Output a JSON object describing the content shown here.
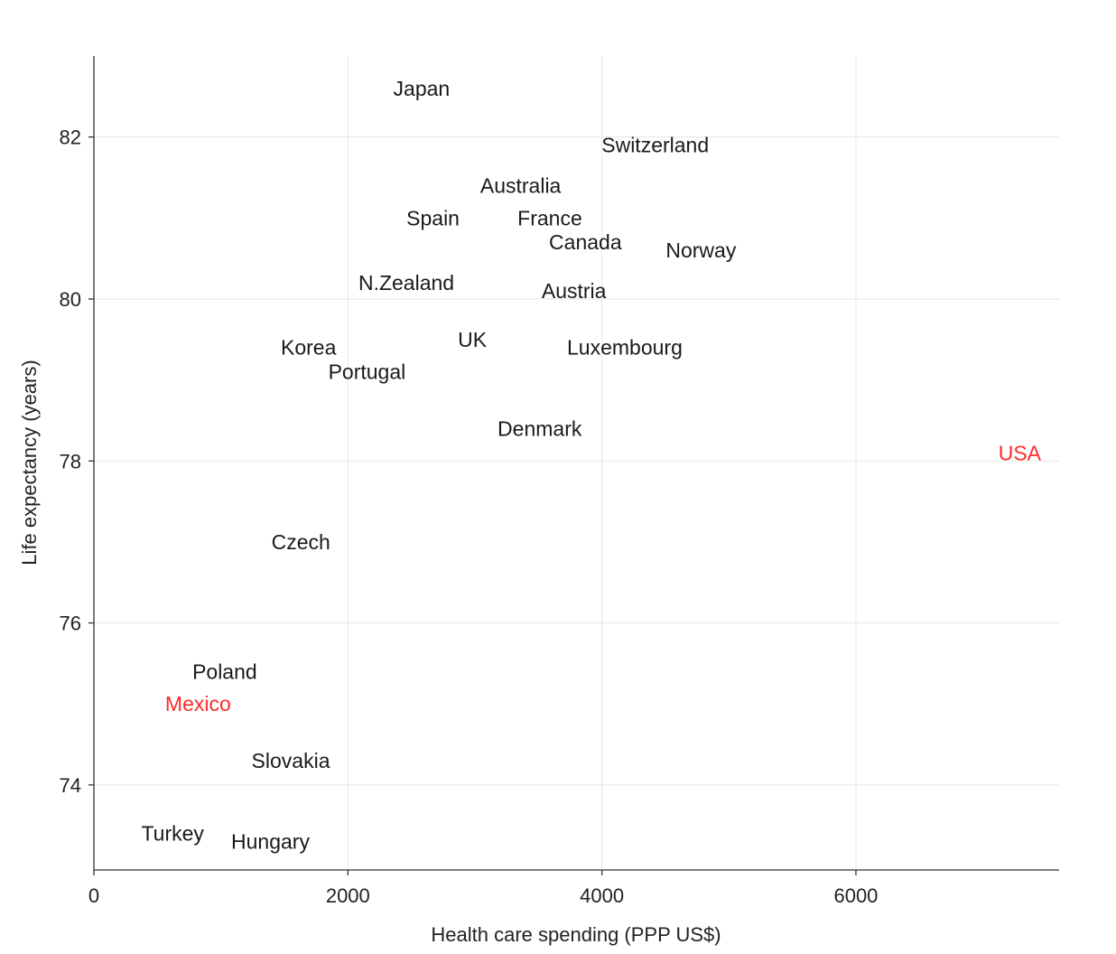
{
  "chart_data": {
    "type": "scatter",
    "title": "",
    "xlabel": "Health care spending (PPP US$)",
    "ylabel": "Life expectancy (years)",
    "xlim": [
      0,
      7600
    ],
    "ylim": [
      72.95,
      83
    ],
    "x_ticks": [
      0,
      2000,
      4000,
      6000
    ],
    "y_ticks": [
      74,
      76,
      78,
      80,
      82
    ],
    "grid": true,
    "legend": "none",
    "default_color": "#1a1a1a",
    "highlight_color": "#ff2a2a",
    "points": [
      {
        "label": "Japan",
        "x": 2580,
        "y": 82.6
      },
      {
        "label": "Switzerland",
        "x": 4420,
        "y": 81.9
      },
      {
        "label": "Australia",
        "x": 3360,
        "y": 81.4
      },
      {
        "label": "Spain",
        "x": 2670,
        "y": 81.0
      },
      {
        "label": "France",
        "x": 3590,
        "y": 81.0
      },
      {
        "label": "Canada",
        "x": 3870,
        "y": 80.7
      },
      {
        "label": "Norway",
        "x": 4780,
        "y": 80.6
      },
      {
        "label": "N.Zealand",
        "x": 2460,
        "y": 80.2
      },
      {
        "label": "Austria",
        "x": 3780,
        "y": 80.1
      },
      {
        "label": "UK",
        "x": 2980,
        "y": 79.5
      },
      {
        "label": "Korea",
        "x": 1690,
        "y": 79.4
      },
      {
        "label": "Luxembourg",
        "x": 4180,
        "y": 79.4
      },
      {
        "label": "Portugal",
        "x": 2150,
        "y": 79.1
      },
      {
        "label": "Denmark",
        "x": 3510,
        "y": 78.4
      },
      {
        "label": "USA",
        "x": 7290,
        "y": 78.1,
        "highlight": true
      },
      {
        "label": "Czech",
        "x": 1630,
        "y": 77.0
      },
      {
        "label": "Poland",
        "x": 1030,
        "y": 75.4
      },
      {
        "label": "Mexico",
        "x": 820,
        "y": 75.0,
        "highlight": true
      },
      {
        "label": "Slovakia",
        "x": 1550,
        "y": 74.3
      },
      {
        "label": "Turkey",
        "x": 620,
        "y": 73.4
      },
      {
        "label": "Hungary",
        "x": 1390,
        "y": 73.3
      }
    ]
  }
}
